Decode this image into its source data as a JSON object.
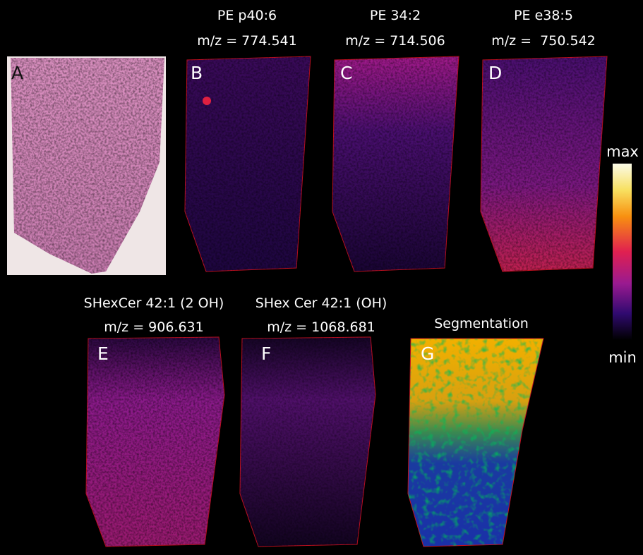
{
  "panels": [
    {
      "letter": "A"
    },
    {
      "letter": "B",
      "title": "PE p40:6",
      "mz": "m/z = 774.541"
    },
    {
      "letter": "C",
      "title": "PE 34:2",
      "mz": "m/z = 714.506"
    },
    {
      "letter": "D",
      "title": "PE e38:5",
      "mz": "m/z =  750.542"
    },
    {
      "letter": "E",
      "title": "SHexCer 42:1 (2 OH)",
      "mz": "m/z = 906.631"
    },
    {
      "letter": "F",
      "title": "SHex Cer 42:1 (OH)",
      "mz": "m/z = 1068.681"
    },
    {
      "letter": "G",
      "title": "Segmentation"
    }
  ],
  "colorbar": {
    "max": "max",
    "min": "min"
  }
}
